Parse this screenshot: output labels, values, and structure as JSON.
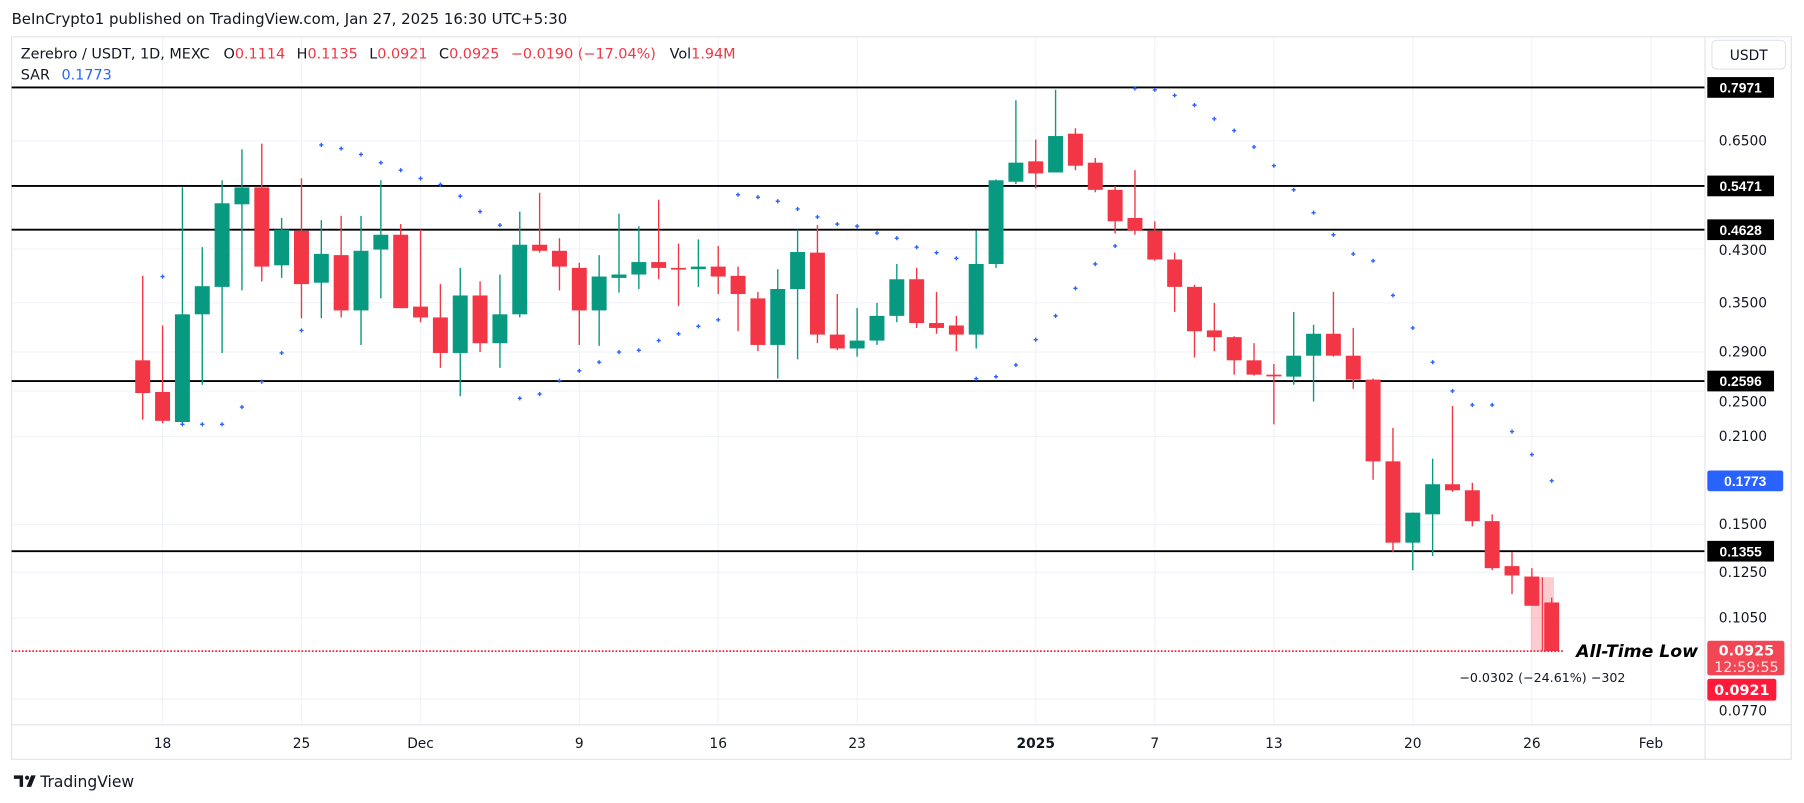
{
  "header": {
    "published": "BeInCrypto1 published on TradingView.com, Jan 27, 2025 16:30 UTC+5:30"
  },
  "legend": {
    "symbol": "Zerebro / USDT, 1D, MEXC",
    "open_label": "O",
    "open": "0.1114",
    "high_label": "H",
    "high": "0.1135",
    "low_label": "L",
    "low": "0.0921",
    "close_label": "C",
    "close": "0.0925",
    "change": "−0.0190 (−17.04%)",
    "vol_label": "Vol",
    "vol": "1.94M",
    "sar_label": "SAR",
    "sar": "0.1773"
  },
  "currency_button": "USDT",
  "footer": {
    "brand": "TradingView",
    "logo_icon": "tradingview-logo-icon"
  },
  "colors": {
    "up": "#089981",
    "down": "#f23645",
    "sar": "#2962ff",
    "level": "#000000",
    "atl": "#f7253c"
  },
  "chart_data": {
    "type": "candlestick",
    "yscale": "log",
    "ylim": [
      0.068,
      0.83
    ],
    "grid": true,
    "x_ticks": [
      {
        "date": "2024-11-18",
        "label": "18"
      },
      {
        "date": "2024-11-25",
        "label": "25"
      },
      {
        "date": "2024-12-01",
        "label": "Dec"
      },
      {
        "date": "2024-12-09",
        "label": "9"
      },
      {
        "date": "2024-12-16",
        "label": "16"
      },
      {
        "date": "2024-12-23",
        "label": "23"
      },
      {
        "date": "2025-01-01",
        "label": "2025"
      },
      {
        "date": "2025-01-07",
        "label": "7"
      },
      {
        "date": "2025-01-13",
        "label": "13"
      },
      {
        "date": "2025-01-20",
        "label": "20"
      },
      {
        "date": "2025-01-26",
        "label": "26"
      },
      {
        "date": "2025-02-01",
        "label": "Feb"
      }
    ],
    "y_ticks": [
      "0.6500",
      "0.4300",
      "0.3500",
      "0.2900",
      "0.2500",
      "0.2100",
      "0.1500",
      "0.1250",
      "0.1050",
      "0.0770"
    ],
    "candles_fields": [
      "date",
      "open",
      "high",
      "low",
      "close"
    ],
    "candles": [
      [
        "2024-11-17",
        0.281,
        0.388,
        0.224,
        0.248
      ],
      [
        "2024-11-18",
        0.249,
        0.321,
        0.221,
        0.223
      ],
      [
        "2024-11-19",
        0.222,
        0.544,
        0.221,
        0.335
      ],
      [
        "2024-11-20",
        0.335,
        0.433,
        0.256,
        0.373
      ],
      [
        "2024-11-21",
        0.372,
        0.559,
        0.289,
        0.512
      ],
      [
        "2024-11-22",
        0.51,
        0.629,
        0.367,
        0.544
      ],
      [
        "2024-11-23",
        0.544,
        0.643,
        0.38,
        0.402
      ],
      [
        "2024-11-24",
        0.404,
        0.484,
        0.385,
        0.463
      ],
      [
        "2024-11-25",
        0.461,
        0.563,
        0.33,
        0.376
      ],
      [
        "2024-11-26",
        0.378,
        0.48,
        0.33,
        0.422
      ],
      [
        "2024-11-27",
        0.42,
        0.488,
        0.331,
        0.34
      ],
      [
        "2024-11-28",
        0.34,
        0.488,
        0.298,
        0.427
      ],
      [
        "2024-11-29",
        0.429,
        0.559,
        0.356,
        0.454
      ],
      [
        "2024-11-30",
        0.454,
        0.473,
        0.343,
        0.343
      ],
      [
        "2024-12-01",
        0.345,
        0.463,
        0.325,
        0.331
      ],
      [
        "2024-12-02",
        0.331,
        0.376,
        0.273,
        0.289
      ],
      [
        "2024-12-03",
        0.289,
        0.4,
        0.245,
        0.36
      ],
      [
        "2024-12-04",
        0.36,
        0.38,
        0.29,
        0.3
      ],
      [
        "2024-12-05",
        0.3,
        0.39,
        0.273,
        0.335
      ],
      [
        "2024-12-06",
        0.335,
        0.496,
        0.331,
        0.437
      ],
      [
        "2024-12-07",
        0.437,
        0.533,
        0.424,
        0.427
      ],
      [
        "2024-12-08",
        0.427,
        0.448,
        0.367,
        0.402
      ],
      [
        "2024-12-09",
        0.4,
        0.408,
        0.298,
        0.34
      ],
      [
        "2024-12-10",
        0.34,
        0.42,
        0.297,
        0.387
      ],
      [
        "2024-12-11",
        0.385,
        0.492,
        0.364,
        0.39
      ],
      [
        "2024-12-12",
        0.39,
        0.469,
        0.369,
        0.409
      ],
      [
        "2024-12-13",
        0.409,
        0.519,
        0.383,
        0.4
      ],
      [
        "2024-12-14",
        0.4,
        0.439,
        0.346,
        0.399
      ],
      [
        "2024-12-15",
        0.398,
        0.446,
        0.372,
        0.402
      ],
      [
        "2024-12-16",
        0.402,
        0.435,
        0.362,
        0.387
      ],
      [
        "2024-12-17",
        0.388,
        0.402,
        0.314,
        0.362
      ],
      [
        "2024-12-18",
        0.356,
        0.365,
        0.291,
        0.298
      ],
      [
        "2024-12-19",
        0.298,
        0.398,
        0.262,
        0.369
      ],
      [
        "2024-12-20",
        0.369,
        0.463,
        0.282,
        0.425
      ],
      [
        "2024-12-21",
        0.424,
        0.471,
        0.3,
        0.31
      ],
      [
        "2024-12-22",
        0.31,
        0.362,
        0.292,
        0.294
      ],
      [
        "2024-12-23",
        0.294,
        0.343,
        0.285,
        0.303
      ],
      [
        "2024-12-24",
        0.303,
        0.35,
        0.298,
        0.333
      ],
      [
        "2024-12-25",
        0.333,
        0.406,
        0.325,
        0.383
      ],
      [
        "2024-12-26",
        0.383,
        0.4,
        0.318,
        0.324
      ],
      [
        "2024-12-27",
        0.324,
        0.365,
        0.311,
        0.318
      ],
      [
        "2024-12-28",
        0.321,
        0.333,
        0.291,
        0.31
      ],
      [
        "2024-12-29",
        0.31,
        0.461,
        0.294,
        0.406
      ],
      [
        "2024-12-30",
        0.406,
        0.561,
        0.4,
        0.559
      ],
      [
        "2024-12-31",
        0.556,
        0.759,
        0.551,
        0.598
      ],
      [
        "2025-01-01",
        0.601,
        0.653,
        0.542,
        0.574
      ],
      [
        "2025-01-02",
        0.576,
        0.79,
        0.576,
        0.662
      ],
      [
        "2025-01-03",
        0.668,
        0.682,
        0.581,
        0.591
      ],
      [
        "2025-01-04",
        0.598,
        0.609,
        0.534,
        0.539
      ],
      [
        "2025-01-05",
        0.539,
        0.547,
        0.456,
        0.478
      ],
      [
        "2025-01-06",
        0.484,
        0.581,
        0.454,
        0.461
      ],
      [
        "2025-01-07",
        0.461,
        0.478,
        0.411,
        0.413
      ],
      [
        "2025-01-08",
        0.413,
        0.424,
        0.338,
        0.372
      ],
      [
        "2025-01-09",
        0.372,
        0.375,
        0.284,
        0.314
      ],
      [
        "2025-01-10",
        0.315,
        0.35,
        0.291,
        0.307
      ],
      [
        "2025-01-11",
        0.307,
        0.308,
        0.266,
        0.281
      ],
      [
        "2025-01-12",
        0.281,
        0.3,
        0.265,
        0.266
      ],
      [
        "2025-01-13",
        0.266,
        0.277,
        0.22,
        0.265
      ],
      [
        "2025-01-14",
        0.264,
        0.338,
        0.256,
        0.286
      ],
      [
        "2025-01-15",
        0.286,
        0.322,
        0.24,
        0.311
      ],
      [
        "2025-01-16",
        0.311,
        0.365,
        0.285,
        0.286
      ],
      [
        "2025-01-17",
        0.286,
        0.318,
        0.252,
        0.261
      ],
      [
        "2025-01-18",
        0.261,
        0.262,
        0.178,
        0.191
      ],
      [
        "2025-01-19",
        0.191,
        0.217,
        0.135,
        0.14
      ],
      [
        "2025-01-20",
        0.14,
        0.157,
        0.126,
        0.157
      ],
      [
        "2025-01-21",
        0.156,
        0.193,
        0.133,
        0.175
      ],
      [
        "2025-01-22",
        0.175,
        0.236,
        0.17,
        0.171
      ],
      [
        "2025-01-23",
        0.171,
        0.176,
        0.149,
        0.152
      ],
      [
        "2025-01-24",
        0.152,
        0.156,
        0.126,
        0.127
      ],
      [
        "2025-01-25",
        0.128,
        0.135,
        0.115,
        0.1235
      ],
      [
        "2025-01-26",
        0.123,
        0.127,
        0.11,
        0.11
      ],
      [
        "2025-01-27",
        0.1114,
        0.1135,
        0.0921,
        0.0925
      ]
    ],
    "sar_series": {
      "name": "SAR",
      "points": [
        [
          "2024-11-18",
          0.387
        ],
        [
          "2024-11-19",
          0.22
        ],
        [
          "2024-11-20",
          0.22
        ],
        [
          "2024-11-21",
          0.22
        ],
        [
          "2024-11-22",
          0.235
        ],
        [
          "2024-11-23",
          0.259
        ],
        [
          "2024-11-24",
          0.289
        ],
        [
          "2024-11-25",
          0.315
        ],
        [
          "2024-11-26",
          0.64
        ],
        [
          "2024-11-27",
          0.631
        ],
        [
          "2024-11-28",
          0.617
        ],
        [
          "2024-11-29",
          0.598
        ],
        [
          "2024-11-30",
          0.581
        ],
        [
          "2024-12-01",
          0.563
        ],
        [
          "2024-12-02",
          0.55
        ],
        [
          "2024-12-03",
          0.526
        ],
        [
          "2024-12-04",
          0.496
        ],
        [
          "2024-12-05",
          0.471
        ],
        [
          "2024-12-06",
          0.243
        ],
        [
          "2024-12-07",
          0.247
        ],
        [
          "2024-12-08",
          0.26
        ],
        [
          "2024-12-09",
          0.27
        ],
        [
          "2024-12-10",
          0.279
        ],
        [
          "2024-12-11",
          0.29
        ],
        [
          "2024-12-12",
          0.292
        ],
        [
          "2024-12-13",
          0.303
        ],
        [
          "2024-12-14",
          0.311
        ],
        [
          "2024-12-15",
          0.32
        ],
        [
          "2024-12-16",
          0.328
        ],
        [
          "2024-12-17",
          0.529
        ],
        [
          "2024-12-18",
          0.524
        ],
        [
          "2024-12-19",
          0.516
        ],
        [
          "2024-12-20",
          0.501
        ],
        [
          "2024-12-21",
          0.486
        ],
        [
          "2024-12-22",
          0.473
        ],
        [
          "2024-12-23",
          0.469
        ],
        [
          "2024-12-24",
          0.457
        ],
        [
          "2024-12-25",
          0.448
        ],
        [
          "2024-12-26",
          0.433
        ],
        [
          "2024-12-27",
          0.424
        ],
        [
          "2024-12-28",
          0.415
        ],
        [
          "2024-12-29",
          0.262
        ],
        [
          "2024-12-30",
          0.264
        ],
        [
          "2024-12-31",
          0.276
        ],
        [
          "2025-01-01",
          0.304
        ],
        [
          "2025-01-02",
          0.333
        ],
        [
          "2025-01-03",
          0.37
        ],
        [
          "2025-01-04",
          0.406
        ],
        [
          "2025-01-05",
          0.435
        ],
        [
          "2025-01-06",
          0.794
        ],
        [
          "2025-01-07",
          0.79
        ],
        [
          "2025-01-08",
          0.773
        ],
        [
          "2025-01-09",
          0.745
        ],
        [
          "2025-01-10",
          0.707
        ],
        [
          "2025-01-11",
          0.676
        ],
        [
          "2025-01-12",
          0.635
        ],
        [
          "2025-01-13",
          0.591
        ],
        [
          "2025-01-14",
          0.539
        ],
        [
          "2025-01-15",
          0.494
        ],
        [
          "2025-01-16",
          0.454
        ],
        [
          "2025-01-17",
          0.422
        ],
        [
          "2025-01-18",
          0.411
        ],
        [
          "2025-01-19",
          0.36
        ],
        [
          "2025-01-20",
          0.318
        ],
        [
          "2025-01-21",
          0.279
        ],
        [
          "2025-01-22",
          0.25
        ],
        [
          "2025-01-23",
          0.237
        ],
        [
          "2025-01-24",
          0.237
        ],
        [
          "2025-01-25",
          0.214
        ],
        [
          "2025-01-26",
          0.196
        ],
        [
          "2025-01-27",
          0.1773
        ]
      ]
    },
    "levels": [
      {
        "value": 0.7971,
        "label": "0.7971"
      },
      {
        "value": 0.5471,
        "label": "0.5471"
      },
      {
        "value": 0.4628,
        "label": "0.4628"
      },
      {
        "value": 0.2596,
        "label": "0.2596"
      },
      {
        "value": 0.1355,
        "label": "0.1355"
      }
    ],
    "atl_line": {
      "value": 0.0925,
      "label": "All-Time Low"
    },
    "price_labels": {
      "sar": "0.1773",
      "last": "0.0925",
      "countdown": "12:59:55",
      "low": "0.0921"
    },
    "measure": {
      "from_date": "2025-01-26",
      "to_date": "2025-01-27",
      "from_price": 0.1227,
      "to_price": 0.0925,
      "text": "−0.0302 (−24.61%) −302"
    }
  }
}
